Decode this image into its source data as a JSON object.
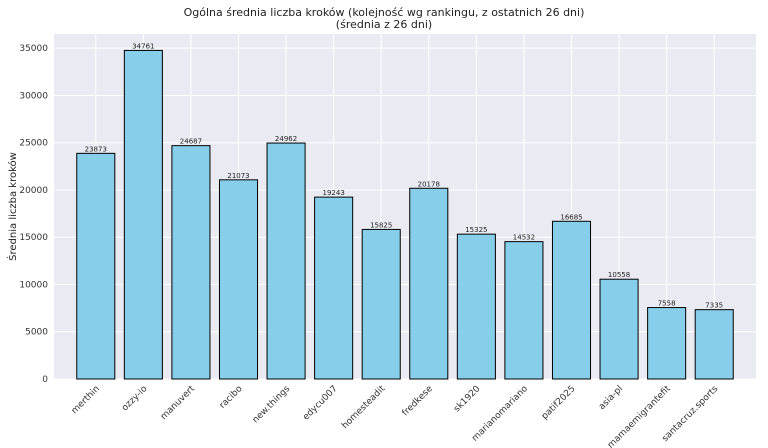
{
  "chart_data": {
    "type": "bar",
    "title": "Ogólna średnia liczba kroków (kolejność wg rankingu, z ostatnich 26 dni)",
    "subtitle": "(średnia z 26 dni)",
    "xlabel": "",
    "ylabel": "Średnia liczba kroków",
    "ylim": [
      0,
      36500
    ],
    "yticks": [
      0,
      5000,
      10000,
      15000,
      20000,
      25000,
      30000,
      35000
    ],
    "grid": true,
    "bar_color": "#87CEEB",
    "bar_edge_color": "#000000",
    "background_color": "#EAEAF2",
    "categories": [
      "merthin",
      "ozzy-io",
      "manuvert",
      "racibo",
      "new.things",
      "edycu007",
      "homesteadit",
      "fredkese",
      "sk1920",
      "marianomariano",
      "patif2025",
      "asia-pl",
      "mamaemigrantefit",
      "santacruz.sports"
    ],
    "values": [
      23873,
      34761,
      24687,
      21073,
      24962,
      19243,
      15825,
      20178,
      15325,
      14532,
      16685,
      10558,
      7558,
      7335
    ]
  }
}
